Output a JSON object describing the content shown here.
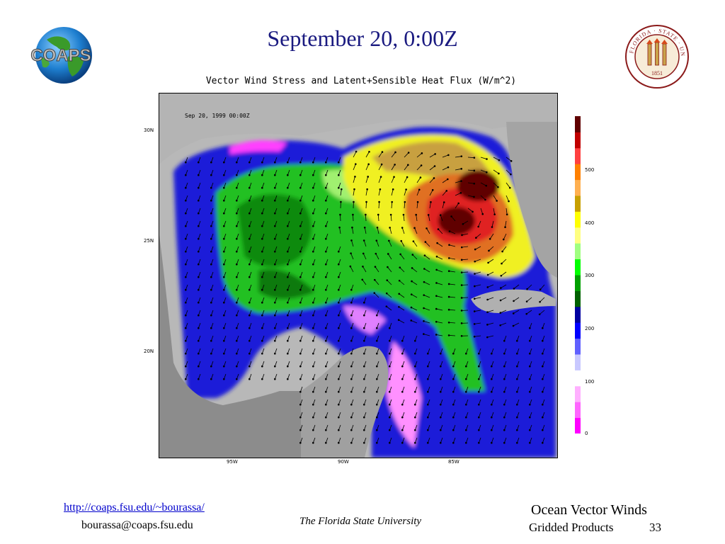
{
  "slide": {
    "title": "September 20, 0:00Z"
  },
  "logos": {
    "coaps_text": "COAPS",
    "seal_text": "FLORIDA STATE UNIVERSITY",
    "seal_year": "1851"
  },
  "figure": {
    "title": "Vector Wind Stress and Latent+Sensible Heat Flux (W/m^2)",
    "timestamp": "Sep 20, 1999 00:00Z",
    "lat_labels": [
      "30N",
      "25N",
      "20N"
    ],
    "lon_labels": [
      "95W",
      "90W",
      "85W"
    ],
    "colorbar_ticks": [
      "500",
      "400",
      "300",
      "200",
      "100",
      "0"
    ],
    "colorbar_colors": [
      "#ff00ff",
      "#ff66ff",
      "#ffb0ff",
      "#ffffff",
      "#c8c8ff",
      "#6060ff",
      "#0000ff",
      "#0000a0",
      "#006000",
      "#00a000",
      "#00ff00",
      "#a0ff80",
      "#ffff80",
      "#ffff00",
      "#c8a000",
      "#ffb050",
      "#ff8000",
      "#ff4040",
      "#c00000",
      "#600000"
    ]
  },
  "footer": {
    "url": "http://coaps.fsu.edu/~bourassa/",
    "email": "bourassa@coaps.fsu.edu",
    "institution": "The Florida State University",
    "section_title": "Ocean Vector Winds",
    "subtitle": "Gridded Products",
    "page_number": "33"
  }
}
